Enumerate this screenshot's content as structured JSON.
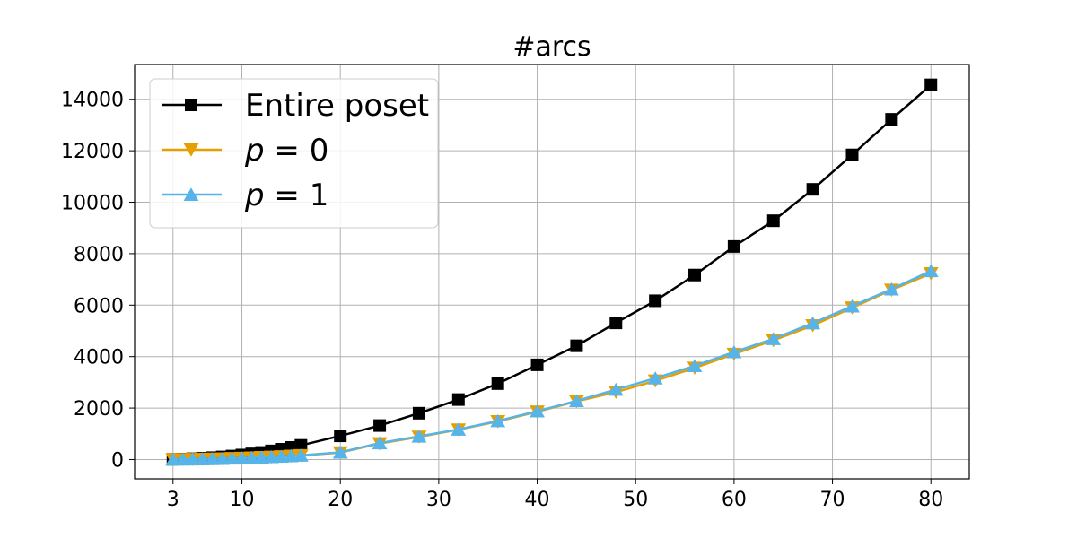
{
  "chart_data": {
    "type": "line",
    "title": "#arcs",
    "xlabel": "",
    "ylabel": "",
    "xlim": [
      -0.9,
      83.9
    ],
    "ylim": [
      -750,
      15350
    ],
    "xticks": [
      3,
      10,
      20,
      30,
      40,
      50,
      60,
      70,
      80
    ],
    "xtick_labels": [
      "3",
      "10",
      "20",
      "30",
      "40",
      "50",
      "60",
      "70",
      "80"
    ],
    "yticks": [
      0,
      2000,
      4000,
      6000,
      8000,
      10000,
      12000,
      14000
    ],
    "ytick_labels": [
      "0",
      "2000",
      "4000",
      "6000",
      "8000",
      "10000",
      "12000",
      "14000"
    ],
    "grid": true,
    "legend_position": "upper-left",
    "x": [
      3,
      4,
      5,
      6,
      7,
      8,
      9,
      10,
      11,
      12,
      13,
      14,
      15,
      16,
      20,
      24,
      28,
      32,
      36,
      40,
      44,
      48,
      52,
      56,
      60,
      64,
      68,
      72,
      76,
      80
    ],
    "series": [
      {
        "name": "Entire poset",
        "marker": "square",
        "color": "#000000",
        "values": [
          7,
          16,
          30,
          48,
          72,
          100,
          135,
          175,
          220,
          275,
          335,
          400,
          470,
          550,
          920,
          1320,
          1800,
          2330,
          2950,
          3680,
          4420,
          5310,
          6170,
          7170,
          8280,
          9280,
          10500,
          11840,
          13220,
          14560
        ]
      },
      {
        "name": "p = 0",
        "name_parts": {
          "var": "p",
          "rest": " = 0"
        },
        "marker": "triangle-down",
        "color": "#E69F00",
        "values": [
          2,
          6,
          11,
          17,
          25,
          34,
          45,
          57,
          70,
          85,
          101,
          119,
          138,
          159,
          270,
          620,
          880,
          1160,
          1480,
          1860,
          2260,
          2620,
          3060,
          3560,
          4100,
          4630,
          5210,
          5900,
          6590,
          7230
        ]
      },
      {
        "name": "p = 1",
        "name_parts": {
          "var": "p",
          "rest": " = 1"
        },
        "marker": "triangle-up",
        "color": "#56B4E9",
        "values": [
          3,
          7,
          12,
          18,
          26,
          35,
          46,
          58,
          71,
          86,
          102,
          120,
          140,
          162,
          280,
          640,
          900,
          1170,
          1500,
          1880,
          2280,
          2720,
          3160,
          3640,
          4180,
          4690,
          5300,
          5960,
          6620,
          7330
        ]
      }
    ]
  }
}
